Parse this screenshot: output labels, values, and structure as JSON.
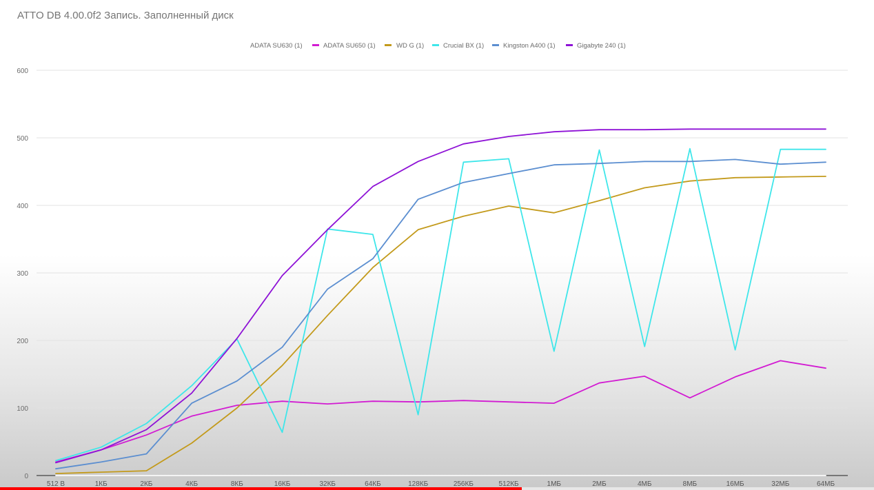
{
  "chart_data": {
    "type": "line",
    "title": "ATTO DB 4.00.0f2 Запись. Заполненный диск",
    "xlabel": "",
    "ylabel": "",
    "ylim": [
      0,
      600
    ],
    "yticks": [
      0,
      100,
      200,
      300,
      400,
      500,
      600
    ],
    "grid": true,
    "legend_position": "top-center",
    "categories": [
      "512 B",
      "1КБ",
      "2КБ",
      "4КБ",
      "8КБ",
      "16КБ",
      "32КБ",
      "64КБ",
      "128КБ",
      "256КБ",
      "512КБ",
      "1МБ",
      "2МБ",
      "4МБ",
      "8МБ",
      "16МБ",
      "32МБ",
      "64МБ"
    ],
    "series": [
      {
        "name": "ADATA SU630 (1)",
        "color": "#ffffff",
        "values": [
          0,
          0,
          0,
          0,
          0,
          0,
          0,
          0,
          0,
          0,
          0,
          0,
          0,
          0,
          0,
          0,
          0,
          0
        ]
      },
      {
        "name": "ADATA SU650 (1)",
        "color": "#d21bd2",
        "values": [
          20,
          38,
          60,
          88,
          104,
          110,
          106,
          110,
          109,
          111,
          109,
          107,
          137,
          147,
          115,
          146,
          170,
          159
        ]
      },
      {
        "name": "WD G (1)",
        "color": "#c39a1b",
        "values": [
          3,
          5,
          7,
          48,
          100,
          163,
          237,
          308,
          364,
          384,
          399,
          389,
          407,
          426,
          436,
          441,
          442,
          443
        ]
      },
      {
        "name": "Crucial BX (1)",
        "color": "#3ee6ea",
        "values": [
          22,
          42,
          77,
          133,
          202,
          64,
          365,
          357,
          90,
          464,
          469,
          184,
          482,
          191,
          484,
          186,
          483,
          483
        ]
      },
      {
        "name": "Kingston A400 (1)",
        "color": "#5b8ed0",
        "values": [
          10,
          20,
          32,
          107,
          140,
          190,
          276,
          321,
          409,
          434,
          447,
          460,
          462,
          465,
          465,
          468,
          461,
          464
        ]
      },
      {
        "name": "Gigabyte 240 (1)",
        "color": "#8e12d6",
        "values": [
          19,
          38,
          68,
          122,
          203,
          296,
          364,
          428,
          465,
          491,
          502,
          509,
          512,
          512,
          513,
          513,
          513,
          513
        ]
      }
    ]
  },
  "player": {
    "progress_fraction": 0.597,
    "progress_color": "#ff0000"
  }
}
